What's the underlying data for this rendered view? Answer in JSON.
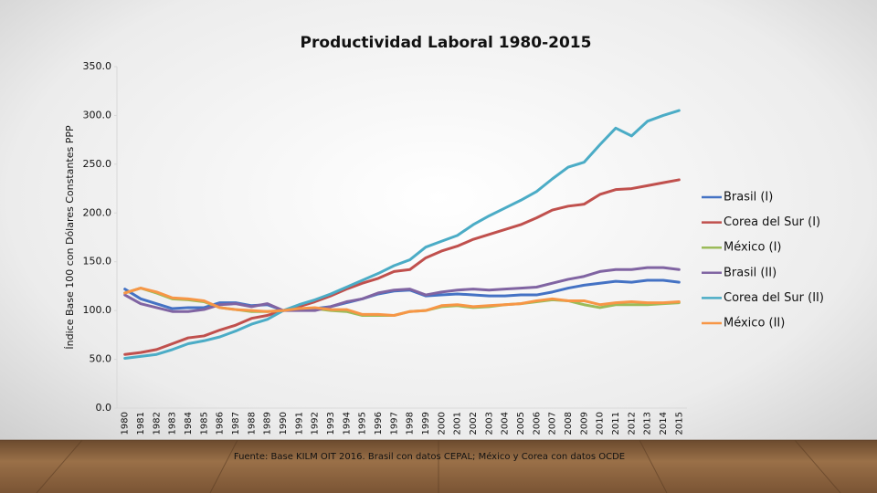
{
  "chart_data": {
    "type": "line",
    "title": "Productividad Laboral 1980-2015",
    "y_label": "Índice Base 100 con Dólares Constantes PPP",
    "source": "Fuente: Base KILM OIT 2016. Brasil con datos CEPAL; México y Corea con datos OCDE",
    "categories": [
      "1980",
      "1981",
      "1982",
      "1983",
      "1984",
      "1985",
      "1986",
      "1987",
      "1988",
      "1989",
      "1990",
      "1991",
      "1992",
      "1993",
      "1994",
      "1995",
      "1996",
      "1997",
      "1998",
      "1999",
      "2000",
      "2001",
      "2002",
      "2003",
      "2004",
      "2005",
      "2006",
      "2007",
      "2008",
      "2009",
      "2010",
      "2011",
      "2012",
      "2013",
      "2014",
      "2015"
    ],
    "ylim": [
      0,
      350
    ],
    "yticks": [
      {
        "value": 0,
        "label": "0.0"
      },
      {
        "value": 50,
        "label": "50.0"
      },
      {
        "value": 100,
        "label": "100.0"
      },
      {
        "value": 150,
        "label": "150.0"
      },
      {
        "value": 200,
        "label": "200.0"
      },
      {
        "value": 250,
        "label": "250.0"
      },
      {
        "value": 300,
        "label": "300.0"
      },
      {
        "value": 350,
        "label": "350.0"
      }
    ],
    "legend": "right",
    "series": [
      {
        "name": "Brasil (I)",
        "color": "#4472c4",
        "values": [
          122,
          112,
          107,
          102,
          103,
          103,
          108,
          108,
          105,
          106,
          100,
          101,
          102,
          104,
          108,
          112,
          117,
          120,
          121,
          115,
          116,
          117,
          116,
          115,
          115,
          116,
          116,
          119,
          123,
          126,
          128,
          130,
          129,
          131,
          131,
          129
        ]
      },
      {
        "name": "Corea del Sur (I)",
        "color": "#c0504d",
        "values": [
          55,
          57,
          60,
          66,
          72,
          74,
          80,
          85,
          92,
          95,
          100,
          104,
          109,
          115,
          122,
          128,
          133,
          140,
          142,
          154,
          161,
          166,
          173,
          178,
          183,
          188,
          195,
          203,
          207,
          209,
          219,
          224,
          225,
          228,
          231,
          234
        ]
      },
      {
        "name": "México (I)",
        "color": "#9bbb59",
        "values": [
          118,
          123,
          118,
          112,
          111,
          109,
          103,
          101,
          99,
          99,
          100,
          102,
          102,
          100,
          99,
          95,
          95,
          95,
          99,
          100,
          104,
          105,
          103,
          104,
          106,
          107,
          109,
          111,
          110,
          106,
          103,
          106,
          106,
          106,
          107,
          108
        ]
      },
      {
        "name": "Brasil (II)",
        "color": "#8064a2",
        "values": [
          116,
          107,
          103,
          99,
          99,
          101,
          106,
          107,
          104,
          107,
          100,
          100,
          100,
          104,
          109,
          112,
          118,
          121,
          122,
          116,
          119,
          121,
          122,
          121,
          122,
          123,
          124,
          128,
          132,
          135,
          140,
          142,
          142,
          144,
          144,
          142
        ]
      },
      {
        "name": "Corea del Sur (II)",
        "color": "#4bacc6",
        "values": [
          51,
          53,
          55,
          60,
          66,
          69,
          73,
          79,
          86,
          91,
          100,
          106,
          111,
          117,
          124,
          131,
          138,
          146,
          152,
          165,
          171,
          177,
          188,
          197,
          205,
          213,
          222,
          235,
          247,
          252,
          270,
          287,
          279,
          294,
          300,
          305
        ]
      },
      {
        "name": "México (II)",
        "color": "#f79646",
        "values": [
          118,
          123,
          119,
          113,
          112,
          110,
          103,
          101,
          100,
          99,
          100,
          102,
          103,
          101,
          101,
          96,
          96,
          95,
          99,
          100,
          105,
          106,
          104,
          105,
          106,
          107,
          110,
          112,
          110,
          110,
          106,
          108,
          109,
          108,
          108,
          109
        ]
      }
    ]
  }
}
